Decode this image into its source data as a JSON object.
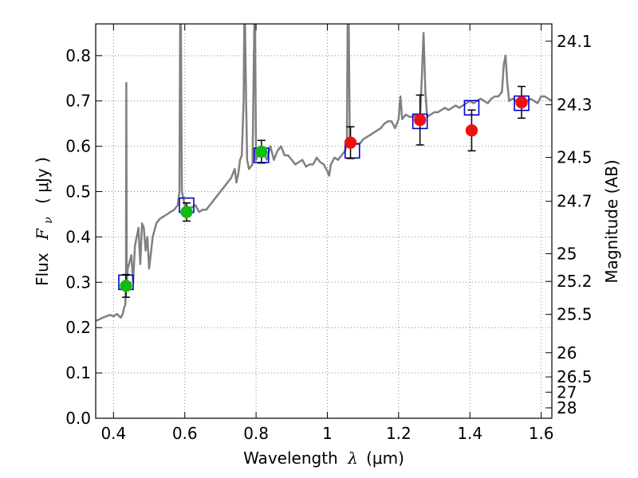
{
  "chart_data": {
    "type": "scatter",
    "xlabel_prefix": "Wavelength",
    "xlabel_symbol": "λ",
    "xlabel_units": "(μm)",
    "ylabel_prefix": "Flux",
    "ylabel_symbol_main": "F",
    "ylabel_symbol_sub": "ν",
    "ylabel_units": "( μJy )",
    "ylabel_right": "Magnitude (AB)",
    "xlim": [
      0.35,
      1.63
    ],
    "ylim": [
      0.0,
      0.87
    ],
    "grid": true,
    "x_ticks": [
      0.4,
      0.6,
      0.8,
      1.0,
      1.2,
      1.4,
      1.6
    ],
    "x_tick_labels": [
      "0.4",
      "0.6",
      "0.8",
      "1",
      "1.2",
      "1.4",
      "1.6"
    ],
    "y_ticks": [
      0.0,
      0.1,
      0.2,
      0.3,
      0.4,
      0.5,
      0.6,
      0.7,
      0.8
    ],
    "y_tick_labels": [
      "0.0",
      "0.1",
      "0.2",
      "0.3",
      "0.4",
      "0.5",
      "0.6",
      "0.7",
      "0.8"
    ],
    "right_ticks": [
      {
        "mag": 24.1,
        "label": "24.1"
      },
      {
        "mag": 24.3,
        "label": "24.3"
      },
      {
        "mag": 24.5,
        "label": "24.5"
      },
      {
        "mag": 24.7,
        "label": "24.7"
      },
      {
        "mag": 25.0,
        "label": "25"
      },
      {
        "mag": 25.2,
        "label": "25.2"
      },
      {
        "mag": 25.5,
        "label": "25.5"
      },
      {
        "mag": 26.0,
        "label": "26"
      },
      {
        "mag": 26.5,
        "label": "26.5"
      },
      {
        "mag": 27.0,
        "label": "27"
      },
      {
        "mag": 28.0,
        "label": "28"
      }
    ],
    "colors": {
      "spectrum": "#808080",
      "model_box": "#0000cc",
      "optical": "#11bb11",
      "infrared": "#ee1111",
      "errorbar": "#000000",
      "grid": "#888888"
    },
    "spectrum": [
      [
        0.35,
        0.215
      ],
      [
        0.36,
        0.218
      ],
      [
        0.37,
        0.222
      ],
      [
        0.38,
        0.225
      ],
      [
        0.39,
        0.228
      ],
      [
        0.4,
        0.225
      ],
      [
        0.41,
        0.23
      ],
      [
        0.42,
        0.222
      ],
      [
        0.425,
        0.228
      ],
      [
        0.43,
        0.245
      ],
      [
        0.433,
        0.25
      ],
      [
        0.435,
        0.3
      ],
      [
        0.436,
        0.74
      ],
      [
        0.437,
        0.3
      ],
      [
        0.44,
        0.33
      ],
      [
        0.45,
        0.36
      ],
      [
        0.455,
        0.3
      ],
      [
        0.46,
        0.38
      ],
      [
        0.47,
        0.42
      ],
      [
        0.475,
        0.34
      ],
      [
        0.48,
        0.43
      ],
      [
        0.485,
        0.42
      ],
      [
        0.49,
        0.37
      ],
      [
        0.495,
        0.4
      ],
      [
        0.5,
        0.33
      ],
      [
        0.51,
        0.4
      ],
      [
        0.52,
        0.43
      ],
      [
        0.53,
        0.44
      ],
      [
        0.54,
        0.445
      ],
      [
        0.55,
        0.45
      ],
      [
        0.56,
        0.455
      ],
      [
        0.57,
        0.46
      ],
      [
        0.58,
        0.47
      ],
      [
        0.585,
        0.5
      ],
      [
        0.587,
        0.87
      ],
      [
        0.589,
        0.87
      ],
      [
        0.592,
        0.5
      ],
      [
        0.6,
        0.47
      ],
      [
        0.61,
        0.465
      ],
      [
        0.62,
        0.465
      ],
      [
        0.63,
        0.47
      ],
      [
        0.64,
        0.455
      ],
      [
        0.65,
        0.46
      ],
      [
        0.66,
        0.46
      ],
      [
        0.67,
        0.47
      ],
      [
        0.68,
        0.48
      ],
      [
        0.69,
        0.49
      ],
      [
        0.7,
        0.5
      ],
      [
        0.71,
        0.51
      ],
      [
        0.72,
        0.52
      ],
      [
        0.73,
        0.53
      ],
      [
        0.74,
        0.55
      ],
      [
        0.745,
        0.52
      ],
      [
        0.75,
        0.54
      ],
      [
        0.755,
        0.57
      ],
      [
        0.76,
        0.58
      ],
      [
        0.765,
        0.7
      ],
      [
        0.767,
        0.87
      ],
      [
        0.769,
        0.87
      ],
      [
        0.772,
        0.7
      ],
      [
        0.775,
        0.57
      ],
      [
        0.78,
        0.55
      ],
      [
        0.79,
        0.56
      ],
      [
        0.795,
        0.87
      ],
      [
        0.797,
        0.87
      ],
      [
        0.8,
        0.57
      ],
      [
        0.81,
        0.59
      ],
      [
        0.82,
        0.59
      ],
      [
        0.83,
        0.57
      ],
      [
        0.84,
        0.6
      ],
      [
        0.85,
        0.57
      ],
      [
        0.86,
        0.59
      ],
      [
        0.87,
        0.6
      ],
      [
        0.88,
        0.58
      ],
      [
        0.89,
        0.58
      ],
      [
        0.9,
        0.57
      ],
      [
        0.91,
        0.56
      ],
      [
        0.92,
        0.565
      ],
      [
        0.93,
        0.57
      ],
      [
        0.94,
        0.555
      ],
      [
        0.95,
        0.56
      ],
      [
        0.96,
        0.56
      ],
      [
        0.97,
        0.575
      ],
      [
        0.98,
        0.565
      ],
      [
        0.99,
        0.56
      ],
      [
        1.0,
        0.545
      ],
      [
        1.005,
        0.535
      ],
      [
        1.01,
        0.56
      ],
      [
        1.02,
        0.575
      ],
      [
        1.03,
        0.57
      ],
      [
        1.04,
        0.58
      ],
      [
        1.05,
        0.59
      ],
      [
        1.055,
        0.61
      ],
      [
        1.057,
        0.87
      ],
      [
        1.06,
        0.87
      ],
      [
        1.063,
        0.62
      ],
      [
        1.07,
        0.6
      ],
      [
        1.08,
        0.605
      ],
      [
        1.09,
        0.605
      ],
      [
        1.1,
        0.615
      ],
      [
        1.11,
        0.62
      ],
      [
        1.12,
        0.625
      ],
      [
        1.13,
        0.63
      ],
      [
        1.14,
        0.635
      ],
      [
        1.15,
        0.64
      ],
      [
        1.16,
        0.65
      ],
      [
        1.17,
        0.655
      ],
      [
        1.18,
        0.655
      ],
      [
        1.19,
        0.64
      ],
      [
        1.2,
        0.66
      ],
      [
        1.205,
        0.71
      ],
      [
        1.21,
        0.66
      ],
      [
        1.22,
        0.67
      ],
      [
        1.23,
        0.665
      ],
      [
        1.24,
        0.665
      ],
      [
        1.25,
        0.67
      ],
      [
        1.26,
        0.66
      ],
      [
        1.265,
        0.75
      ],
      [
        1.27,
        0.85
      ],
      [
        1.275,
        0.72
      ],
      [
        1.28,
        0.665
      ],
      [
        1.29,
        0.67
      ],
      [
        1.3,
        0.675
      ],
      [
        1.31,
        0.675
      ],
      [
        1.32,
        0.68
      ],
      [
        1.33,
        0.685
      ],
      [
        1.34,
        0.68
      ],
      [
        1.35,
        0.685
      ],
      [
        1.36,
        0.69
      ],
      [
        1.37,
        0.685
      ],
      [
        1.38,
        0.69
      ],
      [
        1.39,
        0.695
      ],
      [
        1.4,
        0.7
      ],
      [
        1.41,
        0.695
      ],
      [
        1.42,
        0.7
      ],
      [
        1.43,
        0.705
      ],
      [
        1.44,
        0.7
      ],
      [
        1.45,
        0.695
      ],
      [
        1.46,
        0.705
      ],
      [
        1.47,
        0.71
      ],
      [
        1.48,
        0.71
      ],
      [
        1.49,
        0.72
      ],
      [
        1.495,
        0.78
      ],
      [
        1.5,
        0.8
      ],
      [
        1.505,
        0.74
      ],
      [
        1.51,
        0.7
      ],
      [
        1.52,
        0.705
      ],
      [
        1.53,
        0.7
      ],
      [
        1.54,
        0.705
      ],
      [
        1.55,
        0.695
      ],
      [
        1.56,
        0.7
      ],
      [
        1.57,
        0.705
      ],
      [
        1.58,
        0.7
      ],
      [
        1.59,
        0.695
      ],
      [
        1.6,
        0.71
      ],
      [
        1.61,
        0.71
      ],
      [
        1.62,
        0.705
      ],
      [
        1.63,
        0.7
      ]
    ],
    "model_boxes": [
      {
        "x": 0.435,
        "y": 0.3
      },
      {
        "x": 0.605,
        "y": 0.47
      },
      {
        "x": 0.815,
        "y": 0.58
      },
      {
        "x": 1.07,
        "y": 0.59
      },
      {
        "x": 1.26,
        "y": 0.655
      },
      {
        "x": 1.405,
        "y": 0.685
      },
      {
        "x": 1.545,
        "y": 0.695
      }
    ],
    "optical_points": [
      {
        "x": 0.435,
        "y": 0.292,
        "err": 0.025
      },
      {
        "x": 0.605,
        "y": 0.455,
        "err": 0.02
      },
      {
        "x": 0.815,
        "y": 0.588,
        "err": 0.025
      }
    ],
    "infrared_points": [
      {
        "x": 1.065,
        "y": 0.608,
        "err": 0.035
      },
      {
        "x": 1.26,
        "y": 0.658,
        "err": 0.055
      },
      {
        "x": 1.405,
        "y": 0.635,
        "err": 0.045
      },
      {
        "x": 1.545,
        "y": 0.697,
        "err": 0.035
      }
    ]
  }
}
